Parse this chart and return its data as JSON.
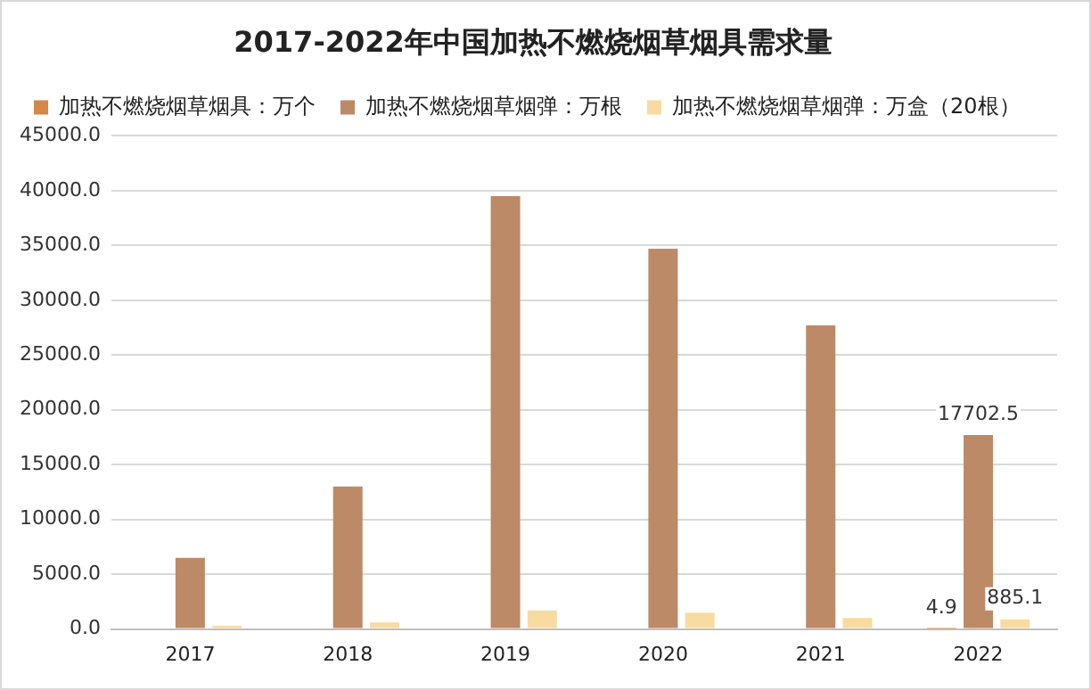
{
  "chart_data": {
    "type": "bar",
    "title": "2017-2022年中国加热不燃烧烟草烟具需求量",
    "categories": [
      "2017",
      "2018",
      "2019",
      "2020",
      "2021",
      "2022"
    ],
    "series": [
      {
        "name": "加热不燃烧烟草烟具：万个",
        "color": "#d4884a",
        "values": [
          null,
          null,
          null,
          null,
          null,
          4.9
        ],
        "value_labels": [
          null,
          null,
          null,
          null,
          null,
          "4.9"
        ]
      },
      {
        "name": "加热不燃烧烟草烟弹：万根",
        "color": "#bc8a66",
        "values": [
          6500,
          13000,
          39500,
          34700,
          27700,
          17702.5
        ],
        "value_labels": [
          null,
          null,
          null,
          null,
          null,
          "17702.5"
        ]
      },
      {
        "name": "加热不燃烧烟草烟弹：万盒（20根）",
        "color": "#f8dba0",
        "values": [
          300,
          600,
          1700,
          1500,
          1000,
          885.1
        ],
        "value_labels": [
          null,
          null,
          null,
          null,
          null,
          "885.1"
        ]
      }
    ],
    "ylim": [
      0,
      45000
    ],
    "yticks": [
      {
        "value": 0,
        "label": "0.0"
      },
      {
        "value": 5000,
        "label": "5000.0"
      },
      {
        "value": 10000,
        "label": "10000.0"
      },
      {
        "value": 15000,
        "label": "15000.0"
      },
      {
        "value": 20000,
        "label": "20000.0"
      },
      {
        "value": 25000,
        "label": "25000.0"
      },
      {
        "value": 30000,
        "label": "30000.0"
      },
      {
        "value": 35000,
        "label": "35000.0"
      },
      {
        "value": 40000,
        "label": "40000.0"
      },
      {
        "value": 45000,
        "label": "45000.0"
      }
    ],
    "grid": "y",
    "legend": "top left"
  }
}
